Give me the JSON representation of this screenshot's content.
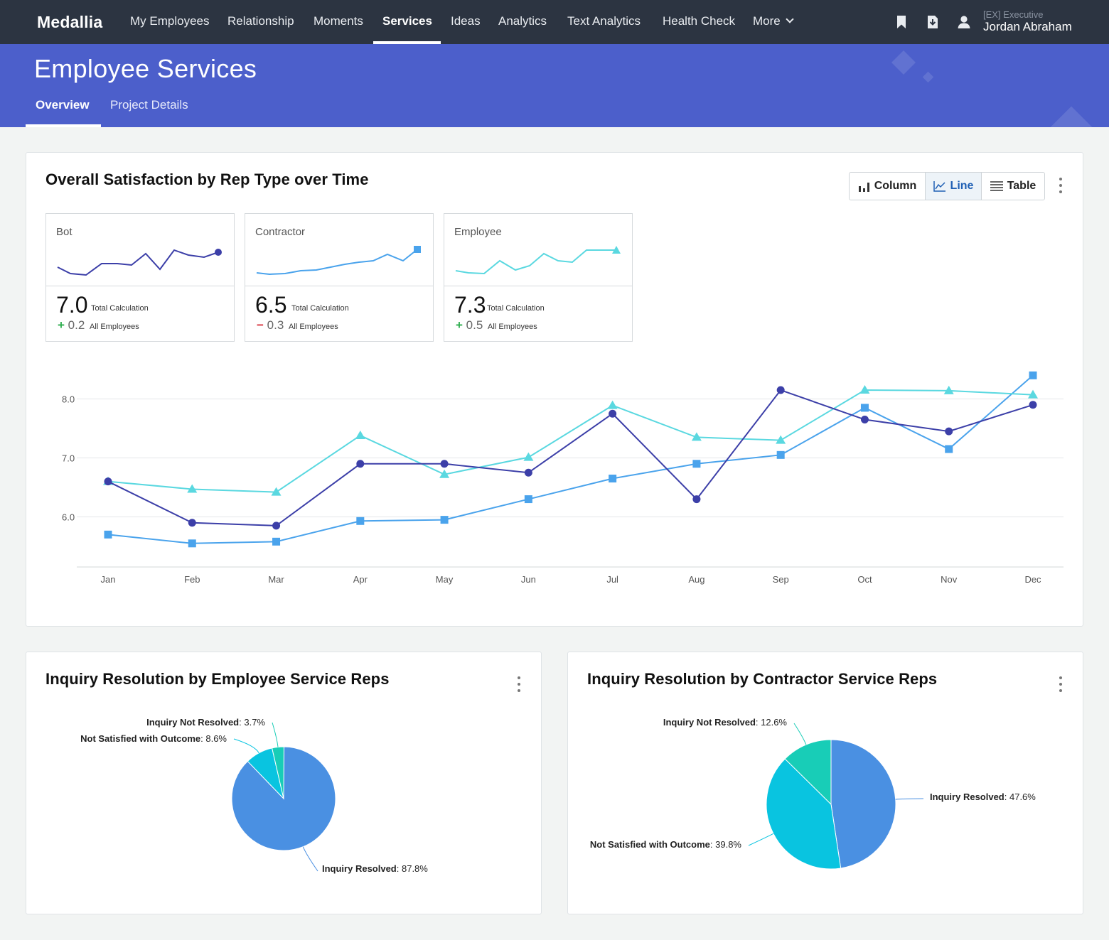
{
  "nav": {
    "logo": "Medallia",
    "items": [
      "My Employees",
      "Relationship",
      "Moments",
      "Services",
      "Ideas",
      "Analytics",
      "Text Analytics",
      "Health Check",
      "More"
    ],
    "active": "Services",
    "icons": [
      "bookmark-icon",
      "download-icon",
      "user-icon"
    ],
    "user_role": "[EX] Executive",
    "user_name": "Jordan Abraham"
  },
  "header": {
    "title": "Employee Services",
    "tabs": [
      "Overview",
      "Project Details"
    ],
    "active_tab": "Overview",
    "color": "#4c5fcb"
  },
  "satisfaction": {
    "title": "Overall Satisfaction by Rep Type over Time",
    "view_buttons": [
      "Column",
      "Line",
      "Table"
    ],
    "active_view": "Line",
    "kpis": [
      {
        "label": "Bot",
        "value": "7.0",
        "value_label": "Total Calculation",
        "delta_sign": "+",
        "delta": "0.2",
        "delta_label": "All Employees"
      },
      {
        "label": "Contractor",
        "value": "6.5",
        "value_label": "Total Calculation",
        "delta_sign": "−",
        "delta": "0.3",
        "delta_label": "All Employees"
      },
      {
        "label": "Employee",
        "value": "7.3",
        "value_label": "Total Calculation",
        "delta_sign": "+",
        "delta": "0.5",
        "delta_label": "All Employees"
      }
    ]
  },
  "employee_pie_card": {
    "title": "Inquiry Resolution by Employee Service Reps"
  },
  "contractor_pie_card": {
    "title": "Inquiry Resolution by Contractor Service Reps"
  },
  "chart_data": [
    {
      "type": "line",
      "title": "Overall Satisfaction by Rep Type over Time",
      "categories": [
        "Jan",
        "Feb",
        "Mar",
        "Apr",
        "May",
        "Jun",
        "Jul",
        "Aug",
        "Sep",
        "Oct",
        "Nov",
        "Dec"
      ],
      "yticks": [
        "6.0",
        "7.0",
        "8.0"
      ],
      "ylim": [
        5.15,
        8.5
      ],
      "grid": true,
      "series": [
        {
          "name": "Bot",
          "marker": "circle",
          "color": "#3c3fa8",
          "values": [
            6.6,
            5.9,
            5.85,
            6.9,
            6.9,
            6.75,
            7.75,
            6.3,
            8.15,
            7.65,
            7.45,
            7.9
          ]
        },
        {
          "name": "Contractor",
          "marker": "square",
          "color": "#4aa3ec",
          "values": [
            5.7,
            5.55,
            5.58,
            5.93,
            5.95,
            6.3,
            6.65,
            6.9,
            7.05,
            7.85,
            7.15,
            8.4
          ]
        },
        {
          "name": "Employee",
          "marker": "triangle",
          "color": "#5ad8e0",
          "values": [
            6.6,
            6.47,
            6.42,
            7.38,
            6.72,
            7.01,
            7.89,
            7.35,
            7.3,
            8.15,
            8.14,
            8.07
          ]
        }
      ]
    },
    {
      "type": "pie",
      "title": "Inquiry Resolution by Employee Service Reps",
      "slices": [
        {
          "label": "Inquiry Resolved",
          "value": "87.8%",
          "pct": 87.8,
          "color": "#4a90e2"
        },
        {
          "label": "Not Satisfied with Outcome",
          "value": "8.6%",
          "pct": 8.6,
          "color": "#09c4e0"
        },
        {
          "label": "Inquiry Not Resolved",
          "value": "3.7%",
          "pct": 3.7,
          "color": "#18cdb7"
        }
      ]
    },
    {
      "type": "pie",
      "title": "Inquiry Resolution by Contractor Service Reps",
      "slices": [
        {
          "label": "Inquiry Resolved",
          "value": "47.6%",
          "pct": 47.6,
          "color": "#4a90e2"
        },
        {
          "label": "Not Satisfied with Outcome",
          "value": "39.8%",
          "pct": 39.8,
          "color": "#09c4e0"
        },
        {
          "label": "Inquiry Not Resolved",
          "value": "12.6%",
          "pct": 12.6,
          "color": "#18cdb7"
        }
      ]
    }
  ]
}
